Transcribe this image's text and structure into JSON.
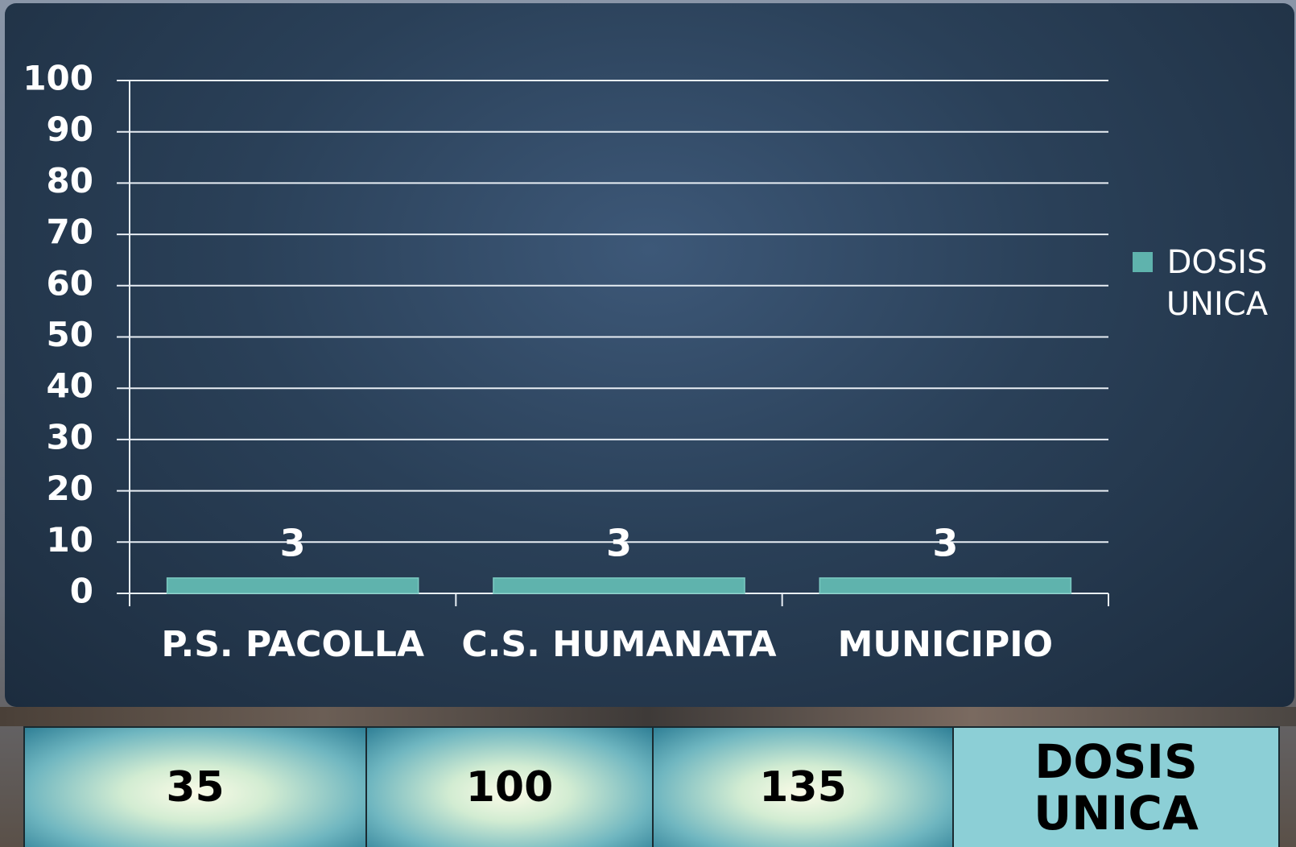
{
  "chart_data": {
    "type": "bar",
    "categories": [
      "P.S. PACOLLA",
      "C.S. HUMANATA",
      "MUNICIPIO"
    ],
    "series": [
      {
        "name": "DOSIS UNICA",
        "color": "#5fb3ad",
        "values": [
          3,
          3,
          3
        ]
      }
    ],
    "ylim": [
      0,
      100
    ],
    "yticks": [
      0,
      10,
      20,
      30,
      40,
      50,
      60,
      70,
      80,
      90,
      100
    ],
    "grid": true,
    "legend": "right"
  },
  "table": {
    "cells": [
      35,
      100,
      135,
      "DOSIS UNICA"
    ]
  }
}
